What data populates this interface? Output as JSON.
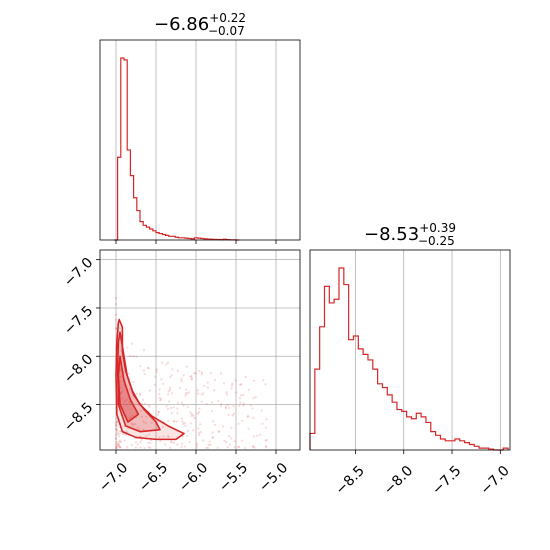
{
  "chart_data": [
    {
      "type": "histogram",
      "panel": "top-left",
      "title": {
        "median": "−6.86",
        "plus": "+0.22",
        "minus": "−0.07"
      },
      "color": "#d62728",
      "xlim": [
        -7.2,
        -4.7
      ],
      "xticks": [
        -7.0,
        -6.5,
        -6.0,
        -5.5,
        -5.0
      ],
      "grid": true,
      "bins": {
        "x": [
          -7.02,
          -6.98,
          -6.94,
          -6.9,
          -6.86,
          -6.82,
          -6.78,
          -6.74,
          -6.7,
          -6.66,
          -6.62,
          -6.58,
          -6.54,
          -6.5,
          -6.46,
          -6.42,
          -6.38,
          -6.34,
          -6.3,
          -6.26,
          -6.22,
          -6.18,
          -6.14,
          -6.1,
          -6.06,
          -6.02,
          -5.98,
          -5.94,
          -5.9,
          -5.86,
          -5.82,
          -5.78,
          -5.74,
          -5.7,
          -5.66,
          -5.62,
          -5.58,
          -5.54,
          -5.5
        ],
        "counts": [
          0,
          0.45,
          0.99,
          0.98,
          0.49,
          0.35,
          0.23,
          0.16,
          0.1,
          0.08,
          0.07,
          0.06,
          0.05,
          0.04,
          0.035,
          0.03,
          0.025,
          0.02,
          0.02,
          0.015,
          0.012,
          0.012,
          0.01,
          0.008,
          0.006,
          0.012,
          0.01,
          0.008,
          0.006,
          0.005,
          0.004,
          0.003,
          0.003,
          0.002,
          0.004,
          0.002,
          0.001,
          0.001,
          0
        ]
      }
    },
    {
      "type": "histogram",
      "panel": "bottom-right",
      "title": {
        "median": "−8.53",
        "plus": "+0.39",
        "minus": "−0.25"
      },
      "color": "#d62728",
      "xlim": [
        -8.97,
        -6.9
      ],
      "xticks": [
        -8.5,
        -8.0,
        -7.5,
        -7.0
      ],
      "grid": true,
      "bins": {
        "x": [
          -8.97,
          -8.92,
          -8.87,
          -8.82,
          -8.77,
          -8.72,
          -8.67,
          -8.62,
          -8.57,
          -8.52,
          -8.47,
          -8.42,
          -8.37,
          -8.32,
          -8.27,
          -8.22,
          -8.17,
          -8.12,
          -8.07,
          -8.02,
          -7.97,
          -7.92,
          -7.87,
          -7.82,
          -7.77,
          -7.72,
          -7.67,
          -7.62,
          -7.57,
          -7.52,
          -7.47,
          -7.42,
          -7.37,
          -7.32,
          -7.27,
          -7.22,
          -7.17,
          -7.12,
          -7.07,
          -7.02,
          -6.97
        ],
        "counts": [
          0.09,
          0.44,
          0.67,
          0.89,
          0.8,
          0.82,
          0.99,
          0.9,
          0.6,
          0.62,
          0.55,
          0.52,
          0.49,
          0.44,
          0.36,
          0.34,
          0.3,
          0.26,
          0.22,
          0.21,
          0.18,
          0.17,
          0.2,
          0.18,
          0.15,
          0.1,
          0.08,
          0.06,
          0.05,
          0.05,
          0.06,
          0.05,
          0.04,
          0.03,
          0.02,
          0.01,
          0.01,
          0.005,
          0,
          0,
          0.01
        ]
      }
    },
    {
      "type": "scatter",
      "panel": "bottom-left",
      "subtype": "2d-density-contour",
      "color": "#d62728",
      "xlim": [
        -7.2,
        -4.7
      ],
      "ylim": [
        -8.97,
        -6.9
      ],
      "xticks": [
        -7.0,
        -6.5,
        -6.0,
        -5.5,
        -5.0
      ],
      "yticks": [
        -7.0,
        -7.5,
        -8.0,
        -8.5
      ],
      "grid": true,
      "contours": [
        {
          "level": "outer",
          "points": [
            [
              -6.96,
              -7.62
            ],
            [
              -6.92,
              -7.7
            ],
            [
              -6.92,
              -7.95
            ],
            [
              -6.88,
              -8.15
            ],
            [
              -6.8,
              -8.35
            ],
            [
              -6.7,
              -8.5
            ],
            [
              -6.55,
              -8.62
            ],
            [
              -6.35,
              -8.72
            ],
            [
              -6.15,
              -8.8
            ],
            [
              -6.25,
              -8.86
            ],
            [
              -6.5,
              -8.86
            ],
            [
              -6.75,
              -8.84
            ],
            [
              -6.92,
              -8.78
            ],
            [
              -6.99,
              -8.6
            ],
            [
              -7.0,
              -8.2
            ],
            [
              -6.99,
              -7.85
            ],
            [
              -6.97,
              -7.65
            ]
          ]
        },
        {
          "level": "middle",
          "points": [
            [
              -6.95,
              -7.75
            ],
            [
              -6.9,
              -8.0
            ],
            [
              -6.86,
              -8.2
            ],
            [
              -6.78,
              -8.4
            ],
            [
              -6.65,
              -8.55
            ],
            [
              -6.5,
              -8.68
            ],
            [
              -6.45,
              -8.76
            ],
            [
              -6.7,
              -8.78
            ],
            [
              -6.88,
              -8.72
            ],
            [
              -6.97,
              -8.5
            ],
            [
              -6.98,
              -8.1
            ],
            [
              -6.97,
              -7.85
            ]
          ]
        },
        {
          "level": "inner",
          "points": [
            [
              -6.95,
              -8.0
            ],
            [
              -6.9,
              -8.25
            ],
            [
              -6.82,
              -8.45
            ],
            [
              -6.72,
              -8.6
            ],
            [
              -6.85,
              -8.68
            ],
            [
              -6.95,
              -8.5
            ],
            [
              -6.97,
              -8.2
            ]
          ]
        }
      ]
    }
  ]
}
